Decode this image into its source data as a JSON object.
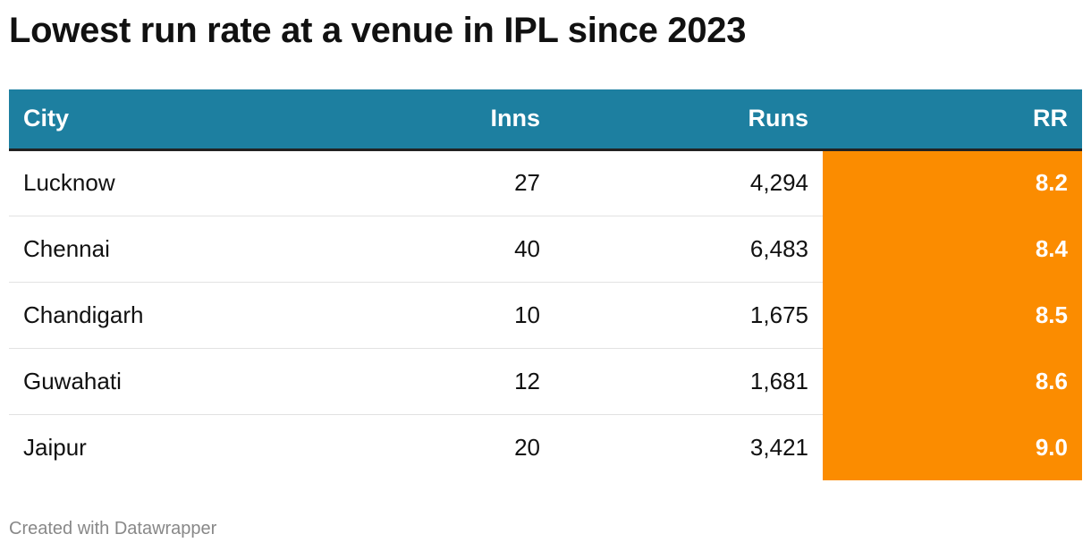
{
  "chart_data": {
    "type": "table",
    "title": "Lowest run rate at a venue in IPL since 2023",
    "columns": [
      "City",
      "Inns",
      "Runs",
      "RR"
    ],
    "rows": [
      {
        "city": "Lucknow",
        "inns": "27",
        "runs": "4,294",
        "rr": "8.2"
      },
      {
        "city": "Chennai",
        "inns": "40",
        "runs": "6,483",
        "rr": "8.4"
      },
      {
        "city": "Chandigarh",
        "inns": "10",
        "runs": "1,675",
        "rr": "8.5"
      },
      {
        "city": "Guwahati",
        "inns": "12",
        "runs": "1,681",
        "rr": "8.6"
      },
      {
        "city": "Jaipur",
        "inns": "20",
        "runs": "3,421",
        "rr": "9.0"
      }
    ]
  },
  "footer": "Created with Datawrapper",
  "colors": {
    "header_bg": "#1d7fa0",
    "highlight": "#fb8c00"
  }
}
